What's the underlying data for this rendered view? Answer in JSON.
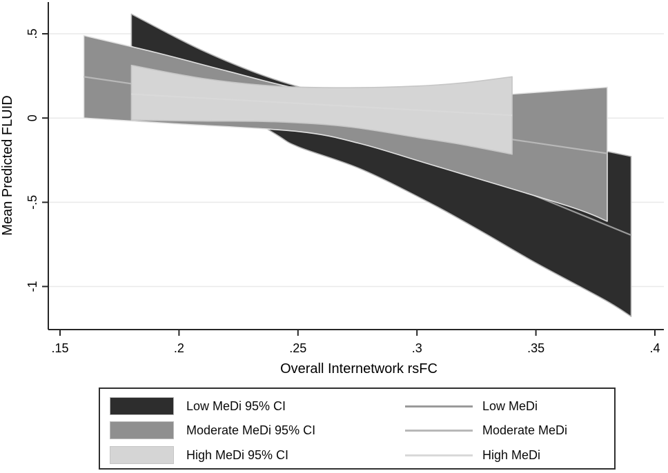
{
  "chart_data": {
    "type": "area",
    "description": "Stata-style marginsplot: mean predicted FLUID cognition vs overall internetwork rsFC with 95% CI bands by Mediterranean diet (MeDi) group",
    "xlabel": "Overall Internetwork rsFC",
    "ylabel": "Mean Predicted FLUID",
    "xlim": [
      0.145,
      0.404
    ],
    "ylim": [
      -1.26,
      0.69
    ],
    "grid": "horizontal",
    "x_ticks": {
      "values": [
        0.15,
        0.2,
        0.25,
        0.3,
        0.35,
        0.4
      ],
      "labels": [
        ".15",
        ".2",
        ".25",
        ".3",
        ".35",
        ".4"
      ]
    },
    "y_ticks": {
      "values": [
        0.5,
        0,
        -0.5,
        -1
      ],
      "labels": [
        ".5",
        "0",
        "-.5",
        "-1"
      ]
    },
    "series": [
      {
        "name": "Low MeDi",
        "ci_label": "Low MeDi 95% CI",
        "fill": "#2d2d2d",
        "edge": "#b4b4b4",
        "line_color": "#9a9a9a",
        "x_range": [
          0.18,
          0.39
        ],
        "mean": {
          "x": [
            0.18,
            0.39
          ],
          "y": [
            0.52,
            -0.695
          ],
          "draw_from": 0.245
        },
        "ci_upper": [
          [
            0.18,
            0.617
          ],
          [
            0.21,
            0.4
          ],
          [
            0.24,
            0.23
          ],
          [
            0.27,
            0.115
          ],
          [
            0.3,
            0.025
          ],
          [
            0.33,
            -0.055
          ],
          [
            0.36,
            -0.14
          ],
          [
            0.39,
            -0.228
          ]
        ],
        "ci_lower": [
          [
            0.18,
            0.427
          ],
          [
            0.21,
            0.17
          ],
          [
            0.24,
            -0.09
          ],
          [
            0.25,
            -0.17
          ],
          [
            0.276,
            -0.3
          ],
          [
            0.305,
            -0.5
          ],
          [
            0.328,
            -0.68
          ],
          [
            0.35,
            -0.86
          ],
          [
            0.379,
            -1.08
          ],
          [
            0.39,
            -1.178
          ]
        ]
      },
      {
        "name": "Moderate MeDi",
        "ci_label": "Moderate MeDi 95% CI",
        "fill": "#8f8f8f",
        "edge": "#e2e2e2",
        "line_color": "#b8b8b8",
        "x_range": [
          0.16,
          0.38
        ],
        "mean": {
          "x": [
            0.16,
            0.38
          ],
          "y": [
            0.245,
            -0.21
          ],
          "draw_from": 0.16
        },
        "ci_upper": [
          [
            0.16,
            0.49
          ],
          [
            0.19,
            0.39
          ],
          [
            0.22,
            0.28
          ],
          [
            0.25,
            0.175
          ],
          [
            0.28,
            0.125
          ],
          [
            0.31,
            0.112
          ],
          [
            0.34,
            0.142
          ],
          [
            0.38,
            0.183
          ]
        ],
        "ci_lower": [
          [
            0.16,
            0.0
          ],
          [
            0.2,
            -0.035
          ],
          [
            0.25,
            -0.08
          ],
          [
            0.276,
            -0.151
          ],
          [
            0.305,
            -0.273
          ],
          [
            0.363,
            -0.52
          ],
          [
            0.38,
            -0.613
          ]
        ]
      },
      {
        "name": "High MeDi",
        "ci_label": "High MeDi 95% CI",
        "fill": "#d5d5d5",
        "edge": "#c6c6c6",
        "line_color": "#d9d9d9",
        "x_range": [
          0.18,
          0.34
        ],
        "mean": {
          "x": [
            0.18,
            0.34
          ],
          "y": [
            0.142,
            0.016
          ],
          "draw_from": 0.18
        },
        "ci_upper": [
          [
            0.18,
            0.313
          ],
          [
            0.21,
            0.235
          ],
          [
            0.24,
            0.19
          ],
          [
            0.27,
            0.18
          ],
          [
            0.3,
            0.19
          ],
          [
            0.32,
            0.21
          ],
          [
            0.34,
            0.245
          ]
        ],
        "ci_lower": [
          [
            0.18,
            -0.012
          ],
          [
            0.21,
            -0.018
          ],
          [
            0.24,
            -0.022
          ],
          [
            0.27,
            -0.05
          ],
          [
            0.3,
            -0.115
          ],
          [
            0.32,
            -0.16
          ],
          [
            0.34,
            -0.215
          ]
        ]
      }
    ],
    "legend_position": "bottom"
  },
  "legend": {
    "ci_entries": [
      {
        "label": "Low MeDi 95% CI",
        "color": "#2d2d2d",
        "edge": "#b4b4b4"
      },
      {
        "label": "Moderate MeDi 95% CI",
        "color": "#8f8f8f",
        "edge": "#bdbdbd"
      },
      {
        "label": "High MeDi 95% CI",
        "color": "#d5d5d5",
        "edge": "#c6c6c6"
      }
    ],
    "line_entries": [
      {
        "label": "Low MeDi",
        "color": "#9a9a9a"
      },
      {
        "label": "Moderate MeDi",
        "color": "#b8b8b8"
      },
      {
        "label": "High MeDi",
        "color": "#d9d9d9"
      }
    ]
  },
  "colors": {
    "background": "#ffffff",
    "axis": "#262626",
    "gridline": "#e9e9e9",
    "legend_border": "#2f2f2f"
  }
}
